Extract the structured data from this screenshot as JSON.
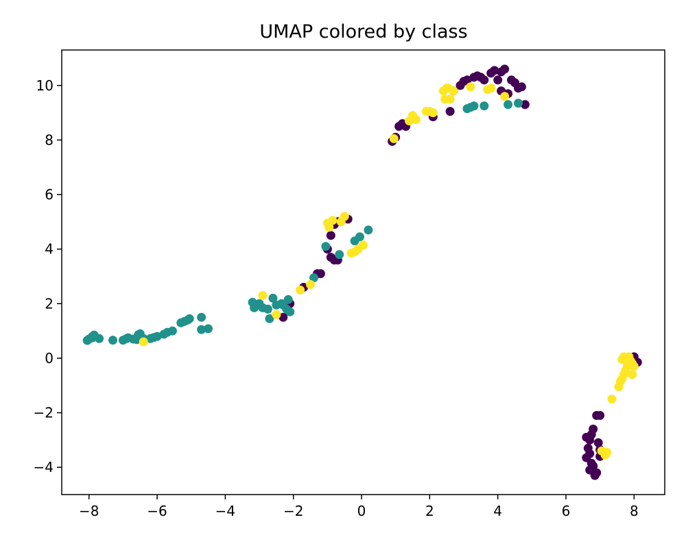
{
  "chart_data": {
    "type": "scatter",
    "title": "UMAP colored by class",
    "xlabel": "",
    "ylabel": "",
    "xlim": [
      -8.8,
      8.9
    ],
    "ylim": [
      -5.0,
      11.3
    ],
    "xticks": [
      -8,
      -6,
      -4,
      -2,
      0,
      2,
      4,
      6,
      8
    ],
    "yticks": [
      -4,
      -2,
      0,
      2,
      4,
      6,
      8,
      10
    ],
    "grid": false,
    "legend": "none",
    "series": [
      {
        "color": "#440154",
        "points": [
          [
            -2.3,
            1.5
          ],
          [
            -2.1,
            2.0
          ],
          [
            -1.7,
            2.6
          ],
          [
            -1.3,
            3.1
          ],
          [
            -1.2,
            3.1
          ],
          [
            -1.0,
            4.0
          ],
          [
            -0.9,
            3.7
          ],
          [
            -0.8,
            3.6
          ],
          [
            -0.7,
            3.6
          ],
          [
            -0.9,
            4.5
          ],
          [
            -0.8,
            4.9
          ],
          [
            -0.7,
            5.0
          ],
          [
            -0.4,
            5.1
          ],
          [
            0.9,
            7.95
          ],
          [
            1.0,
            8.1
          ],
          [
            1.1,
            8.5
          ],
          [
            1.2,
            8.6
          ],
          [
            1.3,
            8.5
          ],
          [
            2.1,
            8.85
          ],
          [
            2.6,
            9.05
          ],
          [
            2.7,
            9.8
          ],
          [
            2.9,
            10.0
          ],
          [
            3.0,
            10.15
          ],
          [
            3.1,
            10.2
          ],
          [
            3.3,
            10.3
          ],
          [
            3.4,
            10.35
          ],
          [
            3.5,
            10.3
          ],
          [
            3.6,
            10.2
          ],
          [
            3.8,
            10.45
          ],
          [
            3.9,
            10.55
          ],
          [
            4.0,
            10.2
          ],
          [
            4.1,
            10.5
          ],
          [
            4.2,
            10.6
          ],
          [
            4.1,
            9.8
          ],
          [
            4.3,
            9.7
          ],
          [
            4.4,
            10.2
          ],
          [
            4.5,
            10.1
          ],
          [
            4.6,
            9.9
          ],
          [
            4.7,
            9.95
          ],
          [
            4.8,
            9.3
          ],
          [
            6.9,
            -2.1
          ],
          [
            7.0,
            -2.1
          ],
          [
            6.8,
            -2.6
          ],
          [
            6.75,
            -2.8
          ],
          [
            6.7,
            -3.0
          ],
          [
            6.6,
            -2.9
          ],
          [
            6.65,
            -3.3
          ],
          [
            6.7,
            -3.5
          ],
          [
            6.6,
            -3.65
          ],
          [
            6.75,
            -3.85
          ],
          [
            6.8,
            -3.95
          ],
          [
            6.7,
            -4.1
          ],
          [
            6.9,
            -4.2
          ],
          [
            6.85,
            -4.3
          ],
          [
            7.0,
            -3.6
          ],
          [
            7.0,
            -3.35
          ],
          [
            6.95,
            -3.1
          ],
          [
            8.0,
            0.05
          ],
          [
            8.1,
            -0.15
          ]
        ]
      },
      {
        "color": "#21918c",
        "points": [
          [
            -8.05,
            0.65
          ],
          [
            -8.0,
            0.7
          ],
          [
            -7.9,
            0.75
          ],
          [
            -7.9,
            0.8
          ],
          [
            -7.85,
            0.85
          ],
          [
            -7.7,
            0.72
          ],
          [
            -7.3,
            0.66
          ],
          [
            -7.0,
            0.66
          ],
          [
            -6.9,
            0.72
          ],
          [
            -6.85,
            0.75
          ],
          [
            -6.7,
            0.7
          ],
          [
            -6.6,
            0.68
          ],
          [
            -6.55,
            0.86
          ],
          [
            -6.5,
            0.9
          ],
          [
            -6.4,
            0.72
          ],
          [
            -6.2,
            0.72
          ],
          [
            -6.1,
            0.76
          ],
          [
            -6.0,
            0.8
          ],
          [
            -5.8,
            0.88
          ],
          [
            -5.7,
            0.95
          ],
          [
            -5.55,
            1.0
          ],
          [
            -5.3,
            1.3
          ],
          [
            -5.2,
            1.35
          ],
          [
            -5.1,
            1.4
          ],
          [
            -5.05,
            1.45
          ],
          [
            -4.7,
            1.5
          ],
          [
            -4.7,
            1.05
          ],
          [
            -4.5,
            1.08
          ],
          [
            -3.2,
            2.05
          ],
          [
            -3.15,
            1.85
          ],
          [
            -3.0,
            2.0
          ],
          [
            -2.9,
            1.85
          ],
          [
            -2.75,
            1.8
          ],
          [
            -2.7,
            1.45
          ],
          [
            -2.6,
            2.2
          ],
          [
            -2.5,
            1.95
          ],
          [
            -2.35,
            2.0
          ],
          [
            -2.3,
            1.95
          ],
          [
            -2.2,
            1.8
          ],
          [
            -2.15,
            2.15
          ],
          [
            -2.1,
            1.7
          ],
          [
            -1.4,
            2.95
          ],
          [
            -1.05,
            4.1
          ],
          [
            -0.65,
            3.8
          ],
          [
            -0.2,
            4.3
          ],
          [
            -0.05,
            4.45
          ],
          [
            0.2,
            4.7
          ],
          [
            3.1,
            9.15
          ],
          [
            3.2,
            9.2
          ],
          [
            3.3,
            9.25
          ],
          [
            3.6,
            9.25
          ],
          [
            4.3,
            9.3
          ],
          [
            4.6,
            9.35
          ]
        ]
      },
      {
        "color": "#fde725",
        "points": [
          [
            -6.4,
            0.6
          ],
          [
            -2.9,
            2.3
          ],
          [
            -2.5,
            1.6
          ],
          [
            -1.8,
            2.5
          ],
          [
            -1.5,
            2.7
          ],
          [
            -0.95,
            4.8
          ],
          [
            -1.0,
            4.95
          ],
          [
            -0.85,
            5.05
          ],
          [
            -0.6,
            5.0
          ],
          [
            -0.5,
            5.2
          ],
          [
            -0.3,
            3.85
          ],
          [
            -0.2,
            3.9
          ],
          [
            -0.1,
            4.0
          ],
          [
            0.05,
            4.15
          ],
          [
            0.95,
            8.05
          ],
          [
            1.4,
            8.7
          ],
          [
            1.5,
            8.9
          ],
          [
            1.6,
            8.75
          ],
          [
            1.9,
            9.05
          ],
          [
            2.0,
            9.05
          ],
          [
            2.1,
            9.0
          ],
          [
            2.4,
            9.8
          ],
          [
            2.45,
            9.5
          ],
          [
            2.5,
            9.9
          ],
          [
            2.55,
            9.9
          ],
          [
            2.6,
            9.5
          ],
          [
            2.7,
            9.8
          ],
          [
            3.2,
            9.95
          ],
          [
            3.7,
            9.85
          ],
          [
            3.8,
            9.9
          ],
          [
            4.2,
            9.6
          ],
          [
            7.35,
            -1.5
          ],
          [
            7.55,
            -1.05
          ],
          [
            7.6,
            -0.85
          ],
          [
            7.65,
            -0.75
          ],
          [
            7.7,
            -0.6
          ],
          [
            7.75,
            -0.45
          ],
          [
            7.8,
            -0.3
          ],
          [
            7.9,
            -0.1
          ],
          [
            7.95,
            -0.2
          ],
          [
            7.65,
            -0.05
          ],
          [
            7.7,
            0.05
          ],
          [
            7.85,
            0.05
          ],
          [
            7.95,
            -0.6
          ],
          [
            8.0,
            -0.3
          ],
          [
            7.05,
            -3.4
          ],
          [
            7.15,
            -3.55
          ],
          [
            7.2,
            -3.45
          ]
        ]
      }
    ]
  }
}
